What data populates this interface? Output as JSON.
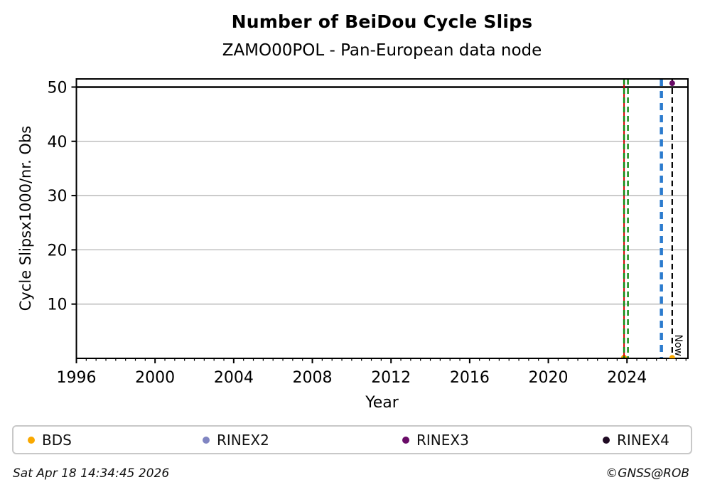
{
  "chart_data": {
    "type": "scatter",
    "title": "Number of BeiDou Cycle Slips",
    "subtitle": "ZAMO00POL - Pan-European data node",
    "xlabel": "Year",
    "ylabel": "Cycle Slipsx1000/nr. Obs",
    "xlim": [
      1996,
      2027.1
    ],
    "ylim": [
      0,
      51.5
    ],
    "x_major_ticks": [
      1996,
      2000,
      2004,
      2008,
      2012,
      2016,
      2020,
      2024
    ],
    "x_minor_step_years": 0.5,
    "y_ticks": [
      10,
      20,
      30,
      40,
      50
    ],
    "grid": {
      "axis": "y",
      "color": "#b3b3b3"
    },
    "threshold_line": {
      "y": 50,
      "color": "#000000"
    },
    "event_lines": [
      {
        "x": 2023.85,
        "color": "#d40000",
        "style": "solid",
        "width": 2.0
      },
      {
        "x": 2023.85,
        "color": "#0e870e",
        "style": "dashed",
        "width": 2.4
      },
      {
        "x": 2024.05,
        "color": "#0e870e",
        "style": "dashed",
        "width": 2.4
      },
      {
        "x": 2025.75,
        "color": "#2b7bce",
        "style": "dashed",
        "width": 4.5
      }
    ],
    "now_line": {
      "x": 2026.3,
      "label": "Now",
      "color": "#000000",
      "style": "dashed",
      "width": 2.2
    },
    "series": [
      {
        "name": "BDS",
        "color": "#f9a800",
        "points": [
          {
            "x": 2023.85,
            "y": 0.15,
            "layer": "back"
          },
          {
            "x": 2026.3,
            "y": 0.1,
            "layer": "front"
          }
        ]
      },
      {
        "name": "RINEX2",
        "color": "#8085c2",
        "points": []
      },
      {
        "name": "RINEX3",
        "color": "#690b67",
        "points": [
          {
            "x": 2026.3,
            "y": 50.7,
            "layer": "front"
          }
        ]
      },
      {
        "name": "RINEX4",
        "color": "#1f0a23",
        "points": []
      }
    ],
    "legend_position": "bottom"
  },
  "footer": {
    "timestamp": "Sat Apr 18 14:34:45 2026",
    "credit": "©GNSS@ROB"
  }
}
